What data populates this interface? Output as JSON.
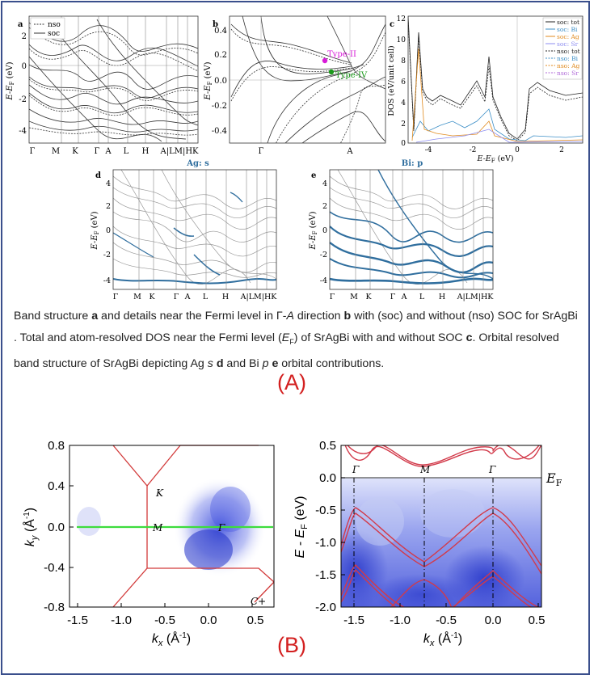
{
  "labels": {
    "A": "(A)",
    "B": "(B)"
  },
  "panel_a": {
    "letter": "a",
    "ylabel": "E-E",
    "ylabel_sub": "F",
    "ylabel_unit": "(eV)",
    "yticks": [
      "2",
      "0",
      "-2",
      "-4"
    ],
    "kpoints": [
      "Γ",
      "M",
      "K",
      "Γ",
      "A",
      "L",
      "H",
      "A|LM|HK"
    ],
    "legend": [
      "nso",
      "soc"
    ]
  },
  "panel_b": {
    "letter": "b",
    "ylabel": "E-E",
    "ylabel_sub": "F",
    "ylabel_unit": "(eV)",
    "yticks": [
      "0.4",
      "0.2",
      "0.0",
      "-0.2",
      "-0.4"
    ],
    "kpoints": [
      "Γ",
      "A"
    ],
    "type2": "Type-II",
    "type4": "Type-IV",
    "colors": {
      "type2": "#d81bd8",
      "type4": "#1a9a1a"
    }
  },
  "panel_c": {
    "letter": "c",
    "ylabel": "DOS (eV/unit cell)",
    "xlabel": "E-E",
    "xlabel_sub": "F",
    "xlabel_unit": "(eV)",
    "yticks": [
      "12",
      "10",
      "8",
      "6",
      "4",
      "2",
      "0"
    ],
    "xticks": [
      "-4",
      "-2",
      "0",
      "2"
    ],
    "legend": [
      "soc: tot",
      "soc: Bi",
      "soc: Ag",
      "soc: Sr",
      "nso: tot",
      "nso: Bi",
      "nso: Ag",
      "nso: Sr"
    ],
    "legend_colors": [
      "#222222",
      "#3d8fc7",
      "#e08a1e",
      "#8c8cf0",
      "#222222",
      "#3d8fc7",
      "#e08a1e",
      "#b06ad8"
    ]
  },
  "panel_d": {
    "letter": "d",
    "title": "Ag: s",
    "ylabel": "E-E",
    "ylabel_sub": "F",
    "ylabel_unit": "(eV)",
    "yticks": [
      "4",
      "2",
      "0",
      "-2",
      "-4"
    ],
    "kpoints": [
      "Γ",
      "M",
      "K",
      "Γ",
      "A",
      "L",
      "H",
      "A|LM|HK"
    ]
  },
  "panel_e": {
    "letter": "e",
    "title": "Bi: p",
    "ylabel": "E-E",
    "ylabel_sub": "F",
    "ylabel_unit": "(eV)",
    "yticks": [
      "4",
      "2",
      "0",
      "-2",
      "-4"
    ],
    "kpoints": [
      "Γ",
      "M",
      "K",
      "Γ",
      "A",
      "L",
      "H",
      "A|LM|HK"
    ]
  },
  "caption": {
    "t1": "Band structure ",
    "b1": "a",
    "t2": " and details near the Fermi level in Γ-",
    "i1": "A",
    "t3": " direction ",
    "b2": "b",
    "t4": " with (soc) and without (nso) SOC for SrAgBi . Total and atom-resolved DOS near the Fermi level (",
    "i2": "E",
    "sub1": "F",
    "t5": ") of SrAgBi with and without SOC ",
    "b3": "c",
    "t6": ". Orbital resolved band structure of SrAgBi depicting Ag ",
    "i3": "s",
    "t7": " ",
    "b4": "d",
    "t8": " and Bi ",
    "i4": "p",
    "t9": " ",
    "b5": "e",
    "t10": " orbital contributions."
  },
  "panel_left": {
    "ylabel_main": "k",
    "ylabel_sub": "y",
    "ylabel_unit": "(Å",
    "ylabel_exp": "-1",
    "ylabel_end": ")",
    "xlabel_main": "k",
    "xlabel_sub": "x",
    "xlabel_unit": "(Å",
    "xlabel_exp": "-1",
    "xlabel_end": ")",
    "yticks": [
      "0.8",
      "0.4",
      "0.0",
      "-0.4",
      "-0.8"
    ],
    "xticks": [
      "-1.5",
      "-1.0",
      "-0.5",
      "0.0",
      "0.5"
    ],
    "pt_K": "K",
    "pt_M": "M",
    "pt_G": "Γ",
    "corner": "C+",
    "colors": {
      "bz": "#d23a3a",
      "cut": "#3ddc3d"
    }
  },
  "panel_right": {
    "ylabel": "E - E",
    "ylabel_sub": "F",
    "ylabel_unit": "(eV)",
    "xlabel_main": "k",
    "xlabel_sub": "x",
    "xlabel_unit": "(Å",
    "xlabel_exp": "-1",
    "xlabel_end": ")",
    "yticks": [
      "0.5",
      "0.0",
      "-0.5",
      "-1.0",
      "-1.5",
      "-2.0"
    ],
    "xticks": [
      "-1.5",
      "-1.0",
      "-0.5",
      "0.0",
      "0.5"
    ],
    "pt_G1": "Γ",
    "pt_M": "M",
    "pt_G2": "Γ",
    "ef": "E",
    "ef_sub": "F",
    "colors": {
      "band": "#d23a4a"
    }
  }
}
